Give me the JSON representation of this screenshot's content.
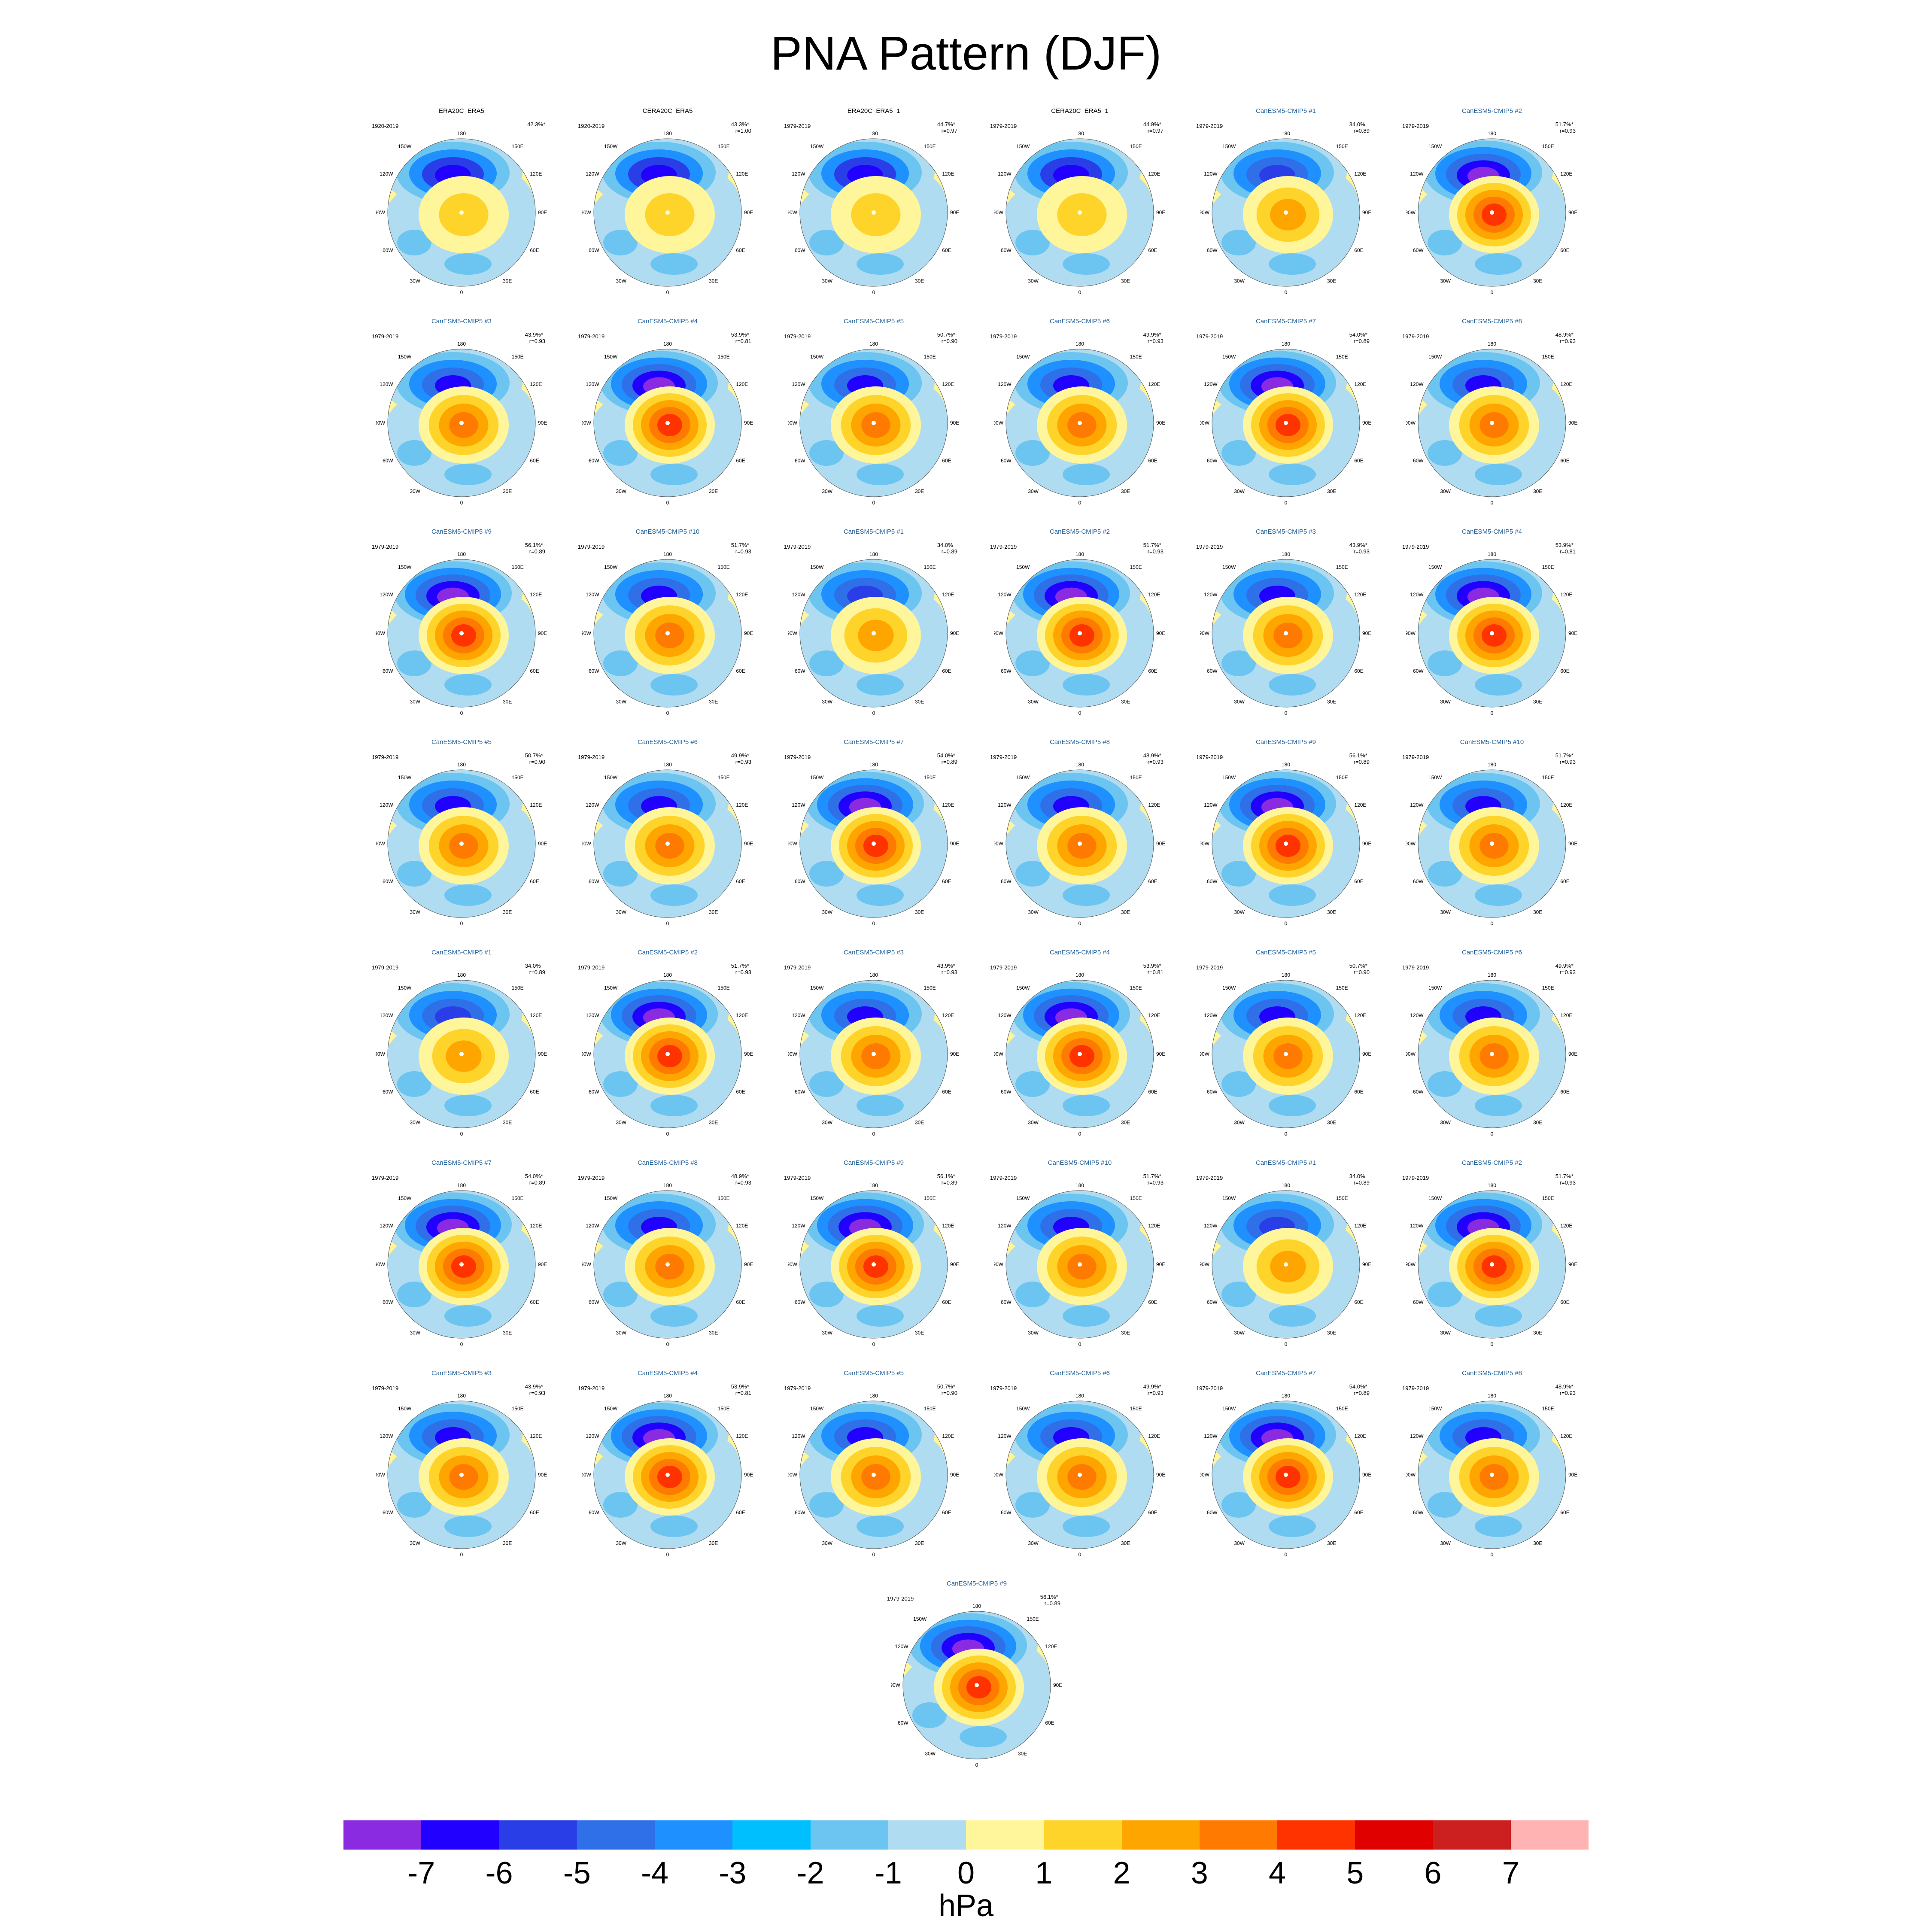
{
  "title": "PNA Pattern (DJF)",
  "map_labels": {
    "top": "180",
    "upper_left": "150W",
    "upper_right": "150E",
    "mid_upper_left": "120W",
    "mid_upper_right": "120E",
    "left": "90W",
    "right": "90E",
    "mid_lower_left": "60W",
    "mid_lower_right": "60E",
    "lower_left": "30W",
    "lower_right": "30E",
    "bottom": "0"
  },
  "panels": [
    {
      "title": "ERA20C_ERA5",
      "model": false,
      "period": "1920-2019",
      "pct": "42.3%*",
      "r": "",
      "shade": "obs"
    },
    {
      "title": "CERA20C_ERA5",
      "model": false,
      "period": "1920-2019",
      "pct": "43.3%*",
      "r": "r=1.00",
      "shade": "obs"
    },
    {
      "title": "ERA20C_ERA5_1",
      "model": false,
      "period": "1979-2019",
      "pct": "44.7%*",
      "r": "r=0.97",
      "shade": "obs"
    },
    {
      "title": "CERA20C_ERA5_1",
      "model": false,
      "period": "1979-2019",
      "pct": "44.9%*",
      "r": "r=0.97",
      "shade": "obs"
    },
    {
      "title": "CanESM5-CMIP5 #1",
      "model": true,
      "period": "1979-2019",
      "pct": "34.0%",
      "r": "r=0.89",
      "shade": "weak"
    },
    {
      "title": "CanESM5-CMIP5 #2",
      "model": true,
      "period": "1979-2019",
      "pct": "51.7%*",
      "r": "r=0.93",
      "shade": "strong"
    },
    {
      "title": "CanESM5-CMIP5 #3",
      "model": true,
      "period": "1979-2019",
      "pct": "43.9%*",
      "r": "r=0.93",
      "shade": "mid"
    },
    {
      "title": "CanESM5-CMIP5 #4",
      "model": true,
      "period": "1979-2019",
      "pct": "53.9%*",
      "r": "r=0.81",
      "shade": "strong"
    },
    {
      "title": "CanESM5-CMIP5 #5",
      "model": true,
      "period": "1979-2019",
      "pct": "50.7%*",
      "r": "r=0.90",
      "shade": "mid"
    },
    {
      "title": "CanESM5-CMIP5 #6",
      "model": true,
      "period": "1979-2019",
      "pct": "49.9%*",
      "r": "r=0.93",
      "shade": "mid"
    },
    {
      "title": "CanESM5-CMIP5 #7",
      "model": true,
      "period": "1979-2019",
      "pct": "54.0%*",
      "r": "r=0.89",
      "shade": "strong"
    },
    {
      "title": "CanESM5-CMIP5 #8",
      "model": true,
      "period": "1979-2019",
      "pct": "48.9%*",
      "r": "r=0.93",
      "shade": "mid"
    },
    {
      "title": "CanESM5-CMIP5 #9",
      "model": true,
      "period": "1979-2019",
      "pct": "56.1%*",
      "r": "r=0.89",
      "shade": "strong"
    },
    {
      "title": "CanESM5-CMIP5 #10",
      "model": true,
      "period": "1979-2019",
      "pct": "51.7%*",
      "r": "r=0.93",
      "shade": "mid"
    },
    {
      "title": "CanESM5-CMIP5 #1",
      "model": true,
      "period": "1979-2019",
      "pct": "34.0%",
      "r": "r=0.89",
      "shade": "weak"
    },
    {
      "title": "CanESM5-CMIP5 #2",
      "model": true,
      "period": "1979-2019",
      "pct": "51.7%*",
      "r": "r=0.93",
      "shade": "strong"
    },
    {
      "title": "CanESM5-CMIP5 #3",
      "model": true,
      "period": "1979-2019",
      "pct": "43.9%*",
      "r": "r=0.93",
      "shade": "mid"
    },
    {
      "title": "CanESM5-CMIP5 #4",
      "model": true,
      "period": "1979-2019",
      "pct": "53.9%*",
      "r": "r=0.81",
      "shade": "strong"
    },
    {
      "title": "CanESM5-CMIP5 #5",
      "model": true,
      "period": "1979-2019",
      "pct": "50.7%*",
      "r": "r=0.90",
      "shade": "mid"
    },
    {
      "title": "CanESM5-CMIP5 #6",
      "model": true,
      "period": "1979-2019",
      "pct": "49.9%*",
      "r": "r=0.93",
      "shade": "mid"
    },
    {
      "title": "CanESM5-CMIP5 #7",
      "model": true,
      "period": "1979-2019",
      "pct": "54.0%*",
      "r": "r=0.89",
      "shade": "strong"
    },
    {
      "title": "CanESM5-CMIP5 #8",
      "model": true,
      "period": "1979-2019",
      "pct": "48.9%*",
      "r": "r=0.93",
      "shade": "mid"
    },
    {
      "title": "CanESM5-CMIP5 #9",
      "model": true,
      "period": "1979-2019",
      "pct": "56.1%*",
      "r": "r=0.89",
      "shade": "strong"
    },
    {
      "title": "CanESM5-CMIP5 #10",
      "model": true,
      "period": "1979-2019",
      "pct": "51.7%*",
      "r": "r=0.93",
      "shade": "mid"
    },
    {
      "title": "CanESM5-CMIP5 #1",
      "model": true,
      "period": "1979-2019",
      "pct": "34.0%",
      "r": "r=0.89",
      "shade": "weak"
    },
    {
      "title": "CanESM5-CMIP5 #2",
      "model": true,
      "period": "1979-2019",
      "pct": "51.7%*",
      "r": "r=0.93",
      "shade": "strong"
    },
    {
      "title": "CanESM5-CMIP5 #3",
      "model": true,
      "period": "1979-2019",
      "pct": "43.9%*",
      "r": "r=0.93",
      "shade": "mid"
    },
    {
      "title": "CanESM5-CMIP5 #4",
      "model": true,
      "period": "1979-2019",
      "pct": "53.9%*",
      "r": "r=0.81",
      "shade": "strong"
    },
    {
      "title": "CanESM5-CMIP5 #5",
      "model": true,
      "period": "1979-2019",
      "pct": "50.7%*",
      "r": "r=0.90",
      "shade": "mid"
    },
    {
      "title": "CanESM5-CMIP5 #6",
      "model": true,
      "period": "1979-2019",
      "pct": "49.9%*",
      "r": "r=0.93",
      "shade": "mid"
    },
    {
      "title": "CanESM5-CMIP5 #7",
      "model": true,
      "period": "1979-2019",
      "pct": "54.0%*",
      "r": "r=0.89",
      "shade": "strong"
    },
    {
      "title": "CanESM5-CMIP5 #8",
      "model": true,
      "period": "1979-2019",
      "pct": "48.9%*",
      "r": "r=0.93",
      "shade": "mid"
    },
    {
      "title": "CanESM5-CMIP5 #9",
      "model": true,
      "period": "1979-2019",
      "pct": "56.1%*",
      "r": "r=0.89",
      "shade": "strong"
    },
    {
      "title": "CanESM5-CMIP5 #10",
      "model": true,
      "period": "1979-2019",
      "pct": "51.7%*",
      "r": "r=0.93",
      "shade": "mid"
    },
    {
      "title": "CanESM5-CMIP5 #1",
      "model": true,
      "period": "1979-2019",
      "pct": "34.0%",
      "r": "r=0.89",
      "shade": "weak"
    },
    {
      "title": "CanESM5-CMIP5 #2",
      "model": true,
      "period": "1979-2019",
      "pct": "51.7%*",
      "r": "r=0.93",
      "shade": "strong"
    },
    {
      "title": "CanESM5-CMIP5 #3",
      "model": true,
      "period": "1979-2019",
      "pct": "43.9%*",
      "r": "r=0.93",
      "shade": "mid"
    },
    {
      "title": "CanESM5-CMIP5 #4",
      "model": true,
      "period": "1979-2019",
      "pct": "53.9%*",
      "r": "r=0.81",
      "shade": "strong"
    },
    {
      "title": "CanESM5-CMIP5 #5",
      "model": true,
      "period": "1979-2019",
      "pct": "50.7%*",
      "r": "r=0.90",
      "shade": "mid"
    },
    {
      "title": "CanESM5-CMIP5 #6",
      "model": true,
      "period": "1979-2019",
      "pct": "49.9%*",
      "r": "r=0.93",
      "shade": "mid"
    },
    {
      "title": "CanESM5-CMIP5 #7",
      "model": true,
      "period": "1979-2019",
      "pct": "54.0%*",
      "r": "r=0.89",
      "shade": "strong"
    },
    {
      "title": "CanESM5-CMIP5 #8",
      "model": true,
      "period": "1979-2019",
      "pct": "48.9%*",
      "r": "r=0.93",
      "shade": "mid"
    },
    {
      "title": "CanESM5-CMIP5 #9",
      "model": true,
      "period": "1979-2019",
      "pct": "56.1%*",
      "r": "r=0.89",
      "shade": "strong"
    }
  ],
  "colorbar": {
    "colors": [
      "#8a2be2",
      "#2200ff",
      "#2a3ee8",
      "#2f6fe8",
      "#1e90ff",
      "#00bfff",
      "#6cc5f0",
      "#b0dcf2",
      "#fff59a",
      "#ffd42a",
      "#ffa500",
      "#ff7a00",
      "#ff3300",
      "#e00000",
      "#cc1f1f",
      "#ffb3b3"
    ],
    "ticks": [
      "-7",
      "-6",
      "-5",
      "-4",
      "-3",
      "-2",
      "-1",
      "0",
      "1",
      "2",
      "3",
      "4",
      "5",
      "6",
      "7"
    ],
    "units": "hPa"
  }
}
